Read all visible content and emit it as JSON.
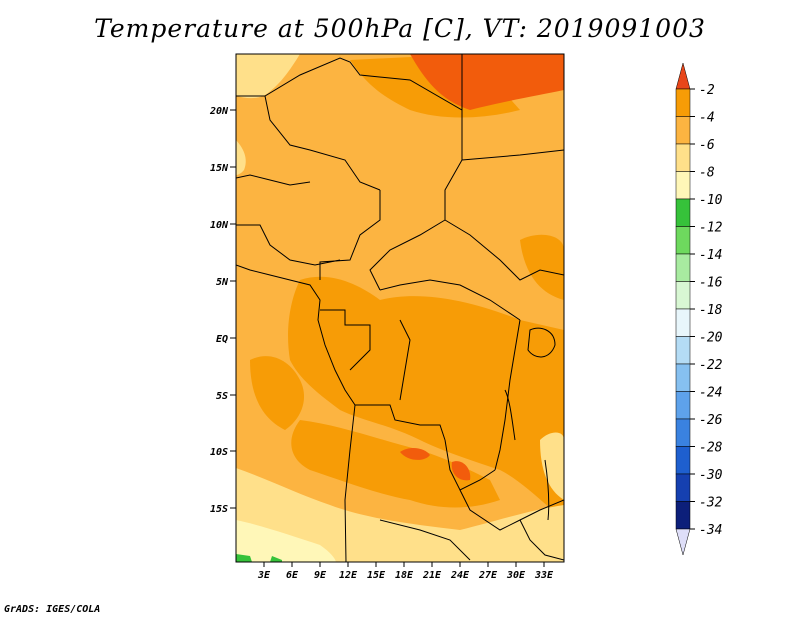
{
  "title": "Temperature at 500hPa [C], VT: 2019091003",
  "credit": "GrADS: IGES/COLA",
  "colors": {
    "lvl_m4_m2": "#f25c0c",
    "lvl_m6_m4": "#f79c06",
    "lvl_m8_m6": "#fcb441",
    "lvl_m10_m8": "#ffe08a",
    "lvl_m12_m10": "#fff7b8",
    "border": "#000000"
  },
  "map": {
    "lat_labels": [
      "20N",
      "15N",
      "10N",
      "5N",
      "EQ",
      "5S",
      "10S",
      "15S"
    ],
    "lon_labels": [
      "3E",
      "6E",
      "9E",
      "12E",
      "15E",
      "18E",
      "21E",
      "24E",
      "27E",
      "30E",
      "33E"
    ]
  },
  "colorbar": {
    "labels": [
      "-2",
      "-4",
      "-6",
      "-8",
      "-10",
      "-12",
      "-14",
      "-16",
      "-18",
      "-20",
      "-22",
      "-24",
      "-26",
      "-28",
      "-30",
      "-32",
      "-34"
    ],
    "colors": [
      "#f25c0c",
      "#f79c06",
      "#fcb441",
      "#ffe08a",
      "#fff7b8",
      "#36c23a",
      "#6ed95e",
      "#a8eba0",
      "#d8f7d3",
      "#e8f6fb",
      "#b4dcf5",
      "#86c0f0",
      "#5ea2eb",
      "#3a82e0",
      "#1e5fcf",
      "#1540b0",
      "#0c1f7a"
    ],
    "top_cap_color": "#e8461a",
    "bottom_cap_color": "#dedef8"
  }
}
